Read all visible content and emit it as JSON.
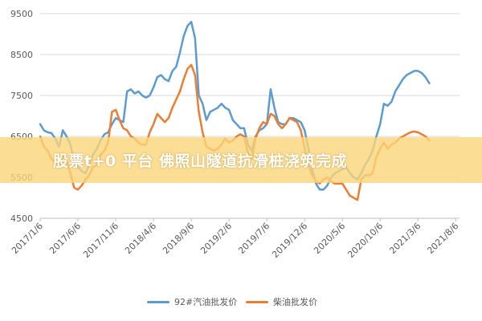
{
  "banner": {
    "text": "股票t+0 平台 佛照山隧道抗滑桩浇筑完成"
  },
  "colors": {
    "series_92": "#5b9bd5",
    "series_diesel": "#ed7d31",
    "grid": "#d9d9d9",
    "banner": "#f7c95c"
  },
  "chart_data": {
    "type": "line",
    "title": "",
    "xlabel": "",
    "ylabel": "",
    "ylim": [
      4500,
      9500
    ],
    "yticks": [
      4500,
      5500,
      6500,
      7500,
      8500,
      9500
    ],
    "ytick_labels": [
      "4500",
      "5500",
      "6500",
      "7500",
      "8500",
      "9500"
    ],
    "xtick_labels": [
      "2017/1/6",
      "2017/6/6",
      "2017/11/6",
      "2018/4/6",
      "2018/9/6",
      "2019/2/6",
      "2019/7/6",
      "2019/12/6",
      "2020/5/6",
      "2020/10/6",
      "2021/3/6",
      "2021/8/6"
    ],
    "x_range_months": [
      0,
      55.5
    ],
    "grid": "horizontal",
    "legend_position": "bottom",
    "series": [
      {
        "name": "92#汽油批发价",
        "color": "#5b9bd5",
        "points": [
          [
            0,
            6800
          ],
          [
            0.5,
            6650
          ],
          [
            1,
            6600
          ],
          [
            1.5,
            6580
          ],
          [
            2,
            6450
          ],
          [
            2.5,
            6250
          ],
          [
            3,
            6650
          ],
          [
            3.5,
            6500
          ],
          [
            4,
            6300
          ],
          [
            4.5,
            5900
          ],
          [
            5,
            5750
          ],
          [
            5.5,
            5650
          ],
          [
            6,
            5600
          ],
          [
            6.5,
            5800
          ],
          [
            7,
            6050
          ],
          [
            7.5,
            6200
          ],
          [
            8,
            6400
          ],
          [
            8.5,
            6550
          ],
          [
            9,
            6600
          ],
          [
            9.5,
            6800
          ],
          [
            10,
            6950
          ],
          [
            10.5,
            6900
          ],
          [
            11,
            6850
          ],
          [
            11.5,
            7600
          ],
          [
            12,
            7650
          ],
          [
            12.5,
            7550
          ],
          [
            13,
            7600
          ],
          [
            13.5,
            7500
          ],
          [
            14,
            7450
          ],
          [
            14.5,
            7500
          ],
          [
            15,
            7700
          ],
          [
            15.5,
            7950
          ],
          [
            16,
            8000
          ],
          [
            16.5,
            7900
          ],
          [
            17,
            7850
          ],
          [
            17.5,
            8100
          ],
          [
            18,
            8200
          ],
          [
            18.5,
            8550
          ],
          [
            19,
            8950
          ],
          [
            19.5,
            9200
          ],
          [
            20,
            9300
          ],
          [
            20.5,
            8900
          ],
          [
            21,
            7500
          ],
          [
            21.5,
            7300
          ],
          [
            22,
            6900
          ],
          [
            22.5,
            7100
          ],
          [
            23,
            7150
          ],
          [
            23.5,
            7200
          ],
          [
            24,
            7300
          ],
          [
            24.5,
            7200
          ],
          [
            25,
            7150
          ],
          [
            25.5,
            6900
          ],
          [
            26,
            6800
          ],
          [
            26.5,
            6700
          ],
          [
            27,
            6700
          ],
          [
            27.5,
            6300
          ],
          [
            28,
            6150
          ],
          [
            28.5,
            6500
          ],
          [
            29,
            6650
          ],
          [
            29.5,
            6700
          ],
          [
            30,
            6800
          ],
          [
            30.5,
            7650
          ],
          [
            31,
            7200
          ],
          [
            31.5,
            6850
          ],
          [
            32,
            6800
          ],
          [
            32.5,
            6800
          ],
          [
            33,
            6950
          ],
          [
            33.5,
            6950
          ],
          [
            34,
            6900
          ],
          [
            34.5,
            6850
          ],
          [
            35,
            6650
          ],
          [
            35.5,
            6200
          ],
          [
            36,
            5700
          ],
          [
            36.5,
            5350
          ],
          [
            37,
            5200
          ],
          [
            37.5,
            5200
          ],
          [
            38,
            5300
          ],
          [
            38.5,
            5500
          ],
          [
            39,
            5600
          ],
          [
            39.5,
            5650
          ],
          [
            40,
            5700
          ],
          [
            40.5,
            5750
          ],
          [
            41,
            5600
          ],
          [
            41.5,
            5500
          ],
          [
            42,
            5450
          ],
          [
            42.5,
            5600
          ],
          [
            43,
            5800
          ],
          [
            43.5,
            5950
          ],
          [
            44,
            6150
          ],
          [
            44.5,
            6500
          ],
          [
            45,
            6800
          ],
          [
            45.5,
            7300
          ],
          [
            46,
            7250
          ],
          [
            46.5,
            7350
          ],
          [
            47,
            7600
          ],
          [
            47.5,
            7750
          ],
          [
            48,
            7900
          ],
          [
            48.5,
            8000
          ],
          [
            49,
            8050
          ],
          [
            49.5,
            8100
          ],
          [
            50,
            8100
          ],
          [
            50.5,
            8050
          ],
          [
            51,
            7950
          ],
          [
            51.5,
            7800
          ]
        ]
      },
      {
        "name": "柴油批发价",
        "color": "#ed7d31",
        "points": [
          [
            0,
            6500
          ],
          [
            0.5,
            6250
          ],
          [
            1,
            6150
          ],
          [
            1.5,
            5950
          ],
          [
            2,
            5850
          ],
          [
            2.5,
            5800
          ],
          [
            3,
            6050
          ],
          [
            3.5,
            5900
          ],
          [
            4,
            5600
          ],
          [
            4.5,
            5250
          ],
          [
            5,
            5200
          ],
          [
            5.5,
            5300
          ],
          [
            6,
            5450
          ],
          [
            6.5,
            5550
          ],
          [
            7,
            5750
          ],
          [
            7.5,
            5800
          ],
          [
            8,
            6050
          ],
          [
            8.5,
            6150
          ],
          [
            9,
            6350
          ],
          [
            9.5,
            7100
          ],
          [
            10,
            7150
          ],
          [
            10.5,
            6900
          ],
          [
            11,
            6700
          ],
          [
            11.5,
            6650
          ],
          [
            12,
            6500
          ],
          [
            12.5,
            6450
          ],
          [
            13,
            6350
          ],
          [
            13.5,
            6300
          ],
          [
            14,
            6300
          ],
          [
            14.5,
            6600
          ],
          [
            15,
            6800
          ],
          [
            15.5,
            7050
          ],
          [
            16,
            6950
          ],
          [
            16.5,
            6850
          ],
          [
            17,
            6950
          ],
          [
            17.5,
            7200
          ],
          [
            18,
            7400
          ],
          [
            18.5,
            7600
          ],
          [
            19,
            7900
          ],
          [
            19.5,
            8150
          ],
          [
            20,
            8250
          ],
          [
            20.5,
            8000
          ],
          [
            21,
            7100
          ],
          [
            21.5,
            6600
          ],
          [
            22,
            6250
          ],
          [
            22.5,
            6200
          ],
          [
            23,
            6150
          ],
          [
            23.5,
            6200
          ],
          [
            24,
            6300
          ],
          [
            24.5,
            6450
          ],
          [
            25,
            6350
          ],
          [
            25.5,
            6400
          ],
          [
            26,
            6500
          ],
          [
            26.5,
            6550
          ],
          [
            27,
            6500
          ],
          [
            27.5,
            6100
          ],
          [
            28,
            5950
          ],
          [
            28.5,
            6450
          ],
          [
            29,
            6700
          ],
          [
            29.5,
            6850
          ],
          [
            30,
            6800
          ],
          [
            30.5,
            7050
          ],
          [
            31,
            7000
          ],
          [
            31.5,
            6800
          ],
          [
            32,
            6700
          ],
          [
            32.5,
            6800
          ],
          [
            33,
            6950
          ],
          [
            33.5,
            6900
          ],
          [
            34,
            6850
          ],
          [
            34.5,
            6650
          ],
          [
            35,
            6200
          ],
          [
            35.5,
            5800
          ],
          [
            36,
            5550
          ],
          [
            36.5,
            5400
          ],
          [
            37,
            5350
          ],
          [
            37.5,
            5450
          ],
          [
            38,
            5500
          ],
          [
            38.5,
            5400
          ],
          [
            39,
            5350
          ],
          [
            39.5,
            5350
          ],
          [
            40,
            5350
          ],
          [
            40.5,
            5200
          ],
          [
            41,
            5050
          ],
          [
            41.5,
            5000
          ],
          [
            42,
            4950
          ],
          [
            42.5,
            5450
          ],
          [
            43,
            5550
          ],
          [
            43.5,
            5550
          ],
          [
            44,
            5600
          ],
          [
            44.5,
            6000
          ],
          [
            45,
            6200
          ],
          [
            45.5,
            6350
          ],
          [
            46,
            6200
          ],
          [
            46.5,
            6300
          ],
          [
            47,
            6350
          ],
          [
            47.5,
            6450
          ],
          [
            48,
            6500
          ],
          [
            48.5,
            6550
          ],
          [
            49,
            6600
          ],
          [
            49.5,
            6620
          ],
          [
            50,
            6600
          ],
          [
            50.5,
            6550
          ],
          [
            51,
            6500
          ],
          [
            51.5,
            6400
          ]
        ]
      }
    ]
  }
}
